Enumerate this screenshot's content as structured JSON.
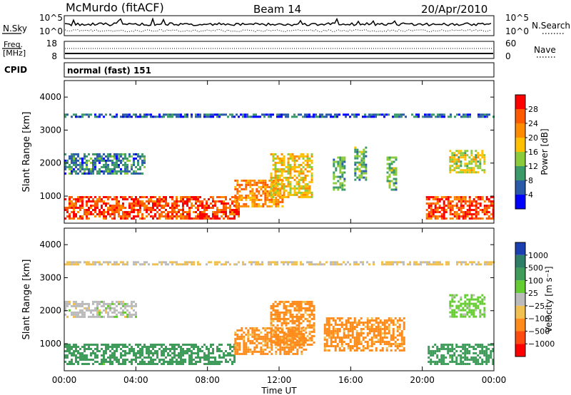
{
  "header": {
    "station": "McMurdo (fitACF)",
    "beam": "Beam 14",
    "date": "20/Apr/2010"
  },
  "summary_panel": {
    "nsky_label": "N.Sky",
    "nsky_ticks": [
      "10^5",
      "10^0"
    ],
    "nsearch_label": "N.Search",
    "nsearch_ticks": [
      "10^5",
      "10^0"
    ],
    "freq_label": "Freq.",
    "freq_unit": "[MHz]",
    "freq_ticks": [
      "18",
      "8"
    ],
    "nave_label": "Nave",
    "nave_ticks": [
      "60",
      "0"
    ],
    "cpid_label": "CPID",
    "cpid_value": "normal (fast) 151"
  },
  "chart_data": [
    {
      "type": "heatmap",
      "name": "power",
      "ylabel": "Slant Range [km]",
      "ylim": [
        180,
        4500
      ],
      "yticks": [
        "4000",
        "3000",
        "2000",
        "1000"
      ],
      "ytick_values": [
        4000,
        3000,
        2000,
        1000
      ],
      "xlim": [
        0,
        24
      ],
      "xticks": [
        "00:00",
        "04:00",
        "08:00",
        "12:00",
        "16:00",
        "20:00",
        "00:00"
      ],
      "xtick_values": [
        0,
        4,
        8,
        12,
        16,
        20,
        24
      ],
      "colorbar": {
        "label": "Power [dB]",
        "tick_labels": [
          "28",
          "24",
          "20",
          "16",
          "12",
          "8",
          "4"
        ],
        "colors": [
          "#ff0000",
          "#ff5a00",
          "#ff8c00",
          "#ffc000",
          "#8ccc3c",
          "#3c9a6a",
          "#2a5aa8",
          "#0000ff"
        ]
      },
      "regions": [
        {
          "t0": 0.0,
          "t1": 9.8,
          "r0": 300,
          "r1": 1000,
          "level": 27
        },
        {
          "t0": 9.5,
          "t1": 12.2,
          "r0": 700,
          "r1": 1500,
          "level": 22
        },
        {
          "t0": 11.5,
          "t1": 13.8,
          "r0": 1000,
          "r1": 2300,
          "level": 18
        },
        {
          "t0": 20.2,
          "t1": 24.0,
          "r0": 300,
          "r1": 1000,
          "level": 27
        },
        {
          "t0": 0.0,
          "t1": 4.5,
          "r0": 1700,
          "r1": 2300,
          "level": 8
        },
        {
          "t0": 15.0,
          "t1": 15.6,
          "r0": 1200,
          "r1": 2200,
          "level": 12
        },
        {
          "t0": 16.2,
          "t1": 16.8,
          "r0": 1500,
          "r1": 2500,
          "level": 12
        },
        {
          "t0": 18.0,
          "t1": 18.5,
          "r0": 1200,
          "r1": 2200,
          "level": 12
        },
        {
          "t0": 21.5,
          "t1": 23.5,
          "r0": 1700,
          "r1": 2400,
          "level": 16
        },
        {
          "t0": 0.0,
          "t1": 24.0,
          "r0": 3400,
          "r1": 3500,
          "level": 6
        }
      ]
    },
    {
      "type": "heatmap",
      "name": "velocity",
      "ylabel": "Slant Range [km]",
      "ylim": [
        180,
        4500
      ],
      "yticks": [
        "4000",
        "3000",
        "2000",
        "1000"
      ],
      "ytick_values": [
        4000,
        3000,
        2000,
        1000
      ],
      "xlim": [
        0,
        24
      ],
      "xticks": [
        "00:00",
        "04:00",
        "08:00",
        "12:00",
        "16:00",
        "20:00",
        "00:00"
      ],
      "xtick_values": [
        0,
        4,
        8,
        12,
        16,
        20,
        24
      ],
      "xlabel": "Time UT",
      "colorbar": {
        "label": "Velocity [m s⁻¹]",
        "tick_labels": [
          "1000",
          "500",
          "100",
          "25",
          "−25",
          "−100",
          "−500",
          "−1000"
        ],
        "colors": [
          "#1a3fb0",
          "#2e7d66",
          "#3f9c5a",
          "#66cc33",
          "#bbbbbb",
          "#f0c050",
          "#ff8c1a",
          "#ff4a10",
          "#ff0000"
        ]
      },
      "regions": [
        {
          "t0": 0.0,
          "t1": 9.5,
          "r0": 400,
          "r1": 1000,
          "level": 200
        },
        {
          "t0": 9.5,
          "t1": 13.5,
          "r0": 700,
          "r1": 1500,
          "level": -150
        },
        {
          "t0": 11.5,
          "t1": 14.0,
          "r0": 1000,
          "r1": 2300,
          "level": -150
        },
        {
          "t0": 14.5,
          "t1": 19.0,
          "r0": 800,
          "r1": 1800,
          "level": -150
        },
        {
          "t0": 20.3,
          "t1": 24.0,
          "r0": 400,
          "r1": 1000,
          "level": 200
        },
        {
          "t0": 0.0,
          "t1": 4.0,
          "r0": 1800,
          "r1": 2300,
          "level": 0
        },
        {
          "t0": 21.5,
          "t1": 23.5,
          "r0": 1800,
          "r1": 2500,
          "level": 50
        },
        {
          "t0": 0.0,
          "t1": 24.0,
          "r0": 3400,
          "r1": 3500,
          "level": -30
        }
      ]
    }
  ]
}
